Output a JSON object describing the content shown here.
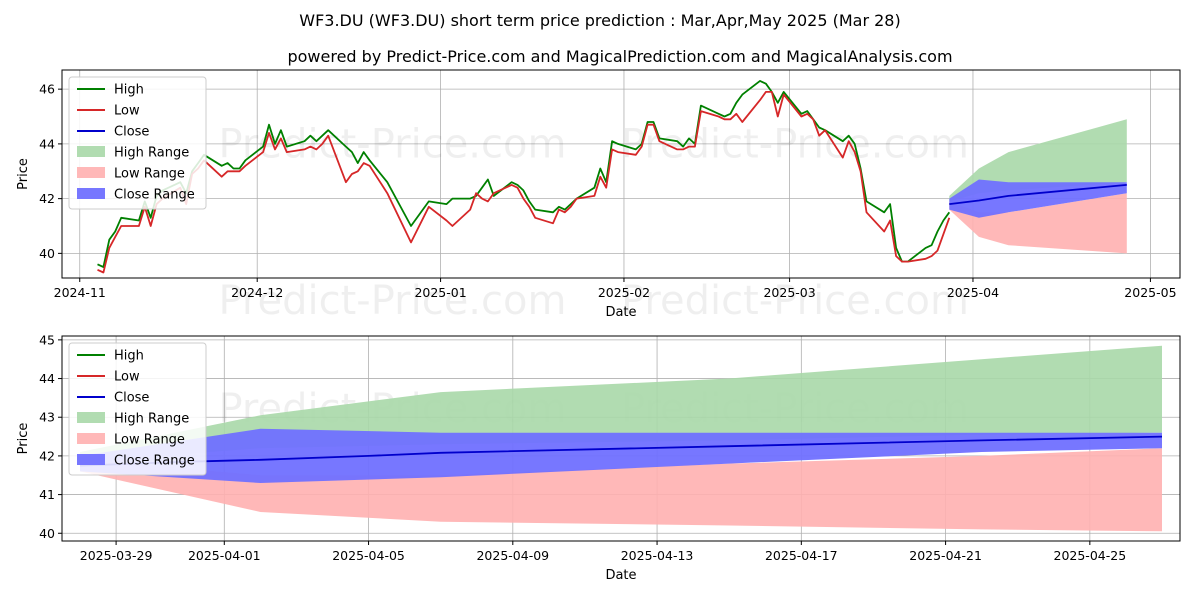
{
  "title": "WF3.DU (WF3.DU) short term price prediction : Mar,Apr,May 2025 (Mar 28)",
  "subtitle": "powered by Predict-Price.com and MagicalPrediction.com and MagicalAnalysis.com",
  "watermark": "Predict-Price.com",
  "colors": {
    "high": "#008000",
    "low": "#d62728",
    "close": "#0000cc",
    "high_range": "#a8d8a8",
    "low_range": "#ffb0b0",
    "close_range": "#7070ff",
    "grid": "#b0b0b0"
  },
  "chart_data": [
    {
      "type": "line",
      "xlabel": "Date",
      "ylabel": "Price",
      "x_range": [
        "2024-10-29",
        "2025-05-06"
      ],
      "ylim": [
        39.1,
        46.7
      ],
      "grid": true,
      "legend_position": "top-left",
      "x_ticks": [
        "2024-11-01",
        "2024-12-01",
        "2025-01-01",
        "2025-02-01",
        "2025-03-01",
        "2025-04-01",
        "2025-05-01"
      ],
      "x_tick_labels": [
        "2024-11",
        "2024-12",
        "2025-01",
        "2025-02",
        "2025-03",
        "2025-04",
        "2025-05"
      ],
      "y_ticks": [
        40,
        42,
        44,
        46
      ],
      "series": [
        {
          "name": "High",
          "x": [
            "2024-11-04",
            "2024-11-05",
            "2024-11-06",
            "2024-11-07",
            "2024-11-08",
            "2024-11-11",
            "2024-11-12",
            "2024-11-13",
            "2024-11-14",
            "2024-11-15",
            "2024-11-18",
            "2024-11-19",
            "2024-11-20",
            "2024-11-21",
            "2024-11-22",
            "2024-11-25",
            "2024-11-26",
            "2024-11-27",
            "2024-11-28",
            "2024-11-29",
            "2024-12-02",
            "2024-12-03",
            "2024-12-04",
            "2024-12-05",
            "2024-12-06",
            "2024-12-09",
            "2024-12-10",
            "2024-12-11",
            "2024-12-12",
            "2024-12-13",
            "2024-12-16",
            "2024-12-17",
            "2024-12-18",
            "2024-12-19",
            "2024-12-20",
            "2024-12-23",
            "2024-12-27",
            "2024-12-30",
            "2025-01-02",
            "2025-01-03",
            "2025-01-06",
            "2025-01-07",
            "2025-01-08",
            "2025-01-09",
            "2025-01-10",
            "2025-01-13",
            "2025-01-14",
            "2025-01-15",
            "2025-01-16",
            "2025-01-17",
            "2025-01-20",
            "2025-01-21",
            "2025-01-22",
            "2025-01-23",
            "2025-01-24",
            "2025-01-27",
            "2025-01-28",
            "2025-01-29",
            "2025-01-30",
            "2025-01-31",
            "2025-02-03",
            "2025-02-04",
            "2025-02-05",
            "2025-02-06",
            "2025-02-07",
            "2025-02-10",
            "2025-02-11",
            "2025-02-12",
            "2025-02-13",
            "2025-02-14",
            "2025-02-17",
            "2025-02-18",
            "2025-02-19",
            "2025-02-20",
            "2025-02-21",
            "2025-02-24",
            "2025-02-25",
            "2025-02-26",
            "2025-02-27",
            "2025-02-28",
            "2025-03-03",
            "2025-03-04",
            "2025-03-05",
            "2025-03-06",
            "2025-03-07",
            "2025-03-10",
            "2025-03-11",
            "2025-03-12",
            "2025-03-13",
            "2025-03-14",
            "2025-03-17",
            "2025-03-18",
            "2025-03-19",
            "2025-03-20",
            "2025-03-21",
            "2025-03-24",
            "2025-03-25",
            "2025-03-26",
            "2025-03-27",
            "2025-03-28"
          ],
          "values": [
            39.6,
            39.5,
            40.5,
            40.8,
            41.3,
            41.2,
            41.9,
            41.3,
            42.1,
            42.3,
            42.6,
            42.2,
            43.0,
            43.3,
            43.6,
            43.2,
            43.3,
            43.1,
            43.1,
            43.4,
            43.9,
            44.7,
            44.0,
            44.5,
            43.9,
            44.1,
            44.3,
            44.1,
            44.3,
            44.5,
            43.9,
            43.7,
            43.3,
            43.7,
            43.4,
            42.6,
            41.0,
            41.9,
            41.8,
            42.0,
            42.0,
            42.1,
            42.4,
            42.7,
            42.1,
            42.6,
            42.5,
            42.3,
            41.9,
            41.6,
            41.5,
            41.7,
            41.6,
            41.8,
            42.0,
            42.4,
            43.1,
            42.6,
            44.1,
            44.0,
            43.8,
            44.0,
            44.8,
            44.8,
            44.2,
            44.1,
            43.9,
            44.2,
            44.0,
            45.4,
            45.1,
            45.0,
            45.1,
            45.5,
            45.8,
            46.3,
            46.2,
            45.9,
            45.5,
            45.9,
            45.1,
            45.2,
            44.9,
            44.6,
            44.5,
            44.1,
            44.3,
            44.0,
            43.1,
            41.9,
            41.5,
            41.8,
            40.2,
            39.7,
            39.7,
            40.2,
            40.3,
            40.8,
            41.2,
            41.5
          ]
        },
        {
          "name": "Low",
          "x": [
            "2024-11-04",
            "2024-11-05",
            "2024-11-06",
            "2024-11-07",
            "2024-11-08",
            "2024-11-11",
            "2024-11-12",
            "2024-11-13",
            "2024-11-14",
            "2024-11-15",
            "2024-11-18",
            "2024-11-19",
            "2024-11-20",
            "2024-11-21",
            "2024-11-22",
            "2024-11-25",
            "2024-11-26",
            "2024-11-27",
            "2024-11-28",
            "2024-11-29",
            "2024-12-02",
            "2024-12-03",
            "2024-12-04",
            "2024-12-05",
            "2024-12-06",
            "2024-12-09",
            "2024-12-10",
            "2024-12-11",
            "2024-12-12",
            "2024-12-13",
            "2024-12-16",
            "2024-12-17",
            "2024-12-18",
            "2024-12-19",
            "2024-12-20",
            "2024-12-23",
            "2024-12-27",
            "2024-12-30",
            "2025-01-02",
            "2025-01-03",
            "2025-01-06",
            "2025-01-07",
            "2025-01-08",
            "2025-01-09",
            "2025-01-10",
            "2025-01-13",
            "2025-01-14",
            "2025-01-15",
            "2025-01-16",
            "2025-01-17",
            "2025-01-20",
            "2025-01-21",
            "2025-01-22",
            "2025-01-23",
            "2025-01-24",
            "2025-01-27",
            "2025-01-28",
            "2025-01-29",
            "2025-01-30",
            "2025-01-31",
            "2025-02-03",
            "2025-02-04",
            "2025-02-05",
            "2025-02-06",
            "2025-02-07",
            "2025-02-10",
            "2025-02-11",
            "2025-02-12",
            "2025-02-13",
            "2025-02-14",
            "2025-02-17",
            "2025-02-18",
            "2025-02-19",
            "2025-02-20",
            "2025-02-21",
            "2025-02-24",
            "2025-02-25",
            "2025-02-26",
            "2025-02-27",
            "2025-02-28",
            "2025-03-03",
            "2025-03-04",
            "2025-03-05",
            "2025-03-06",
            "2025-03-07",
            "2025-03-10",
            "2025-03-11",
            "2025-03-12",
            "2025-03-13",
            "2025-03-14",
            "2025-03-17",
            "2025-03-18",
            "2025-03-19",
            "2025-03-20",
            "2025-03-21",
            "2025-03-24",
            "2025-03-25",
            "2025-03-26",
            "2025-03-27",
            "2025-03-28"
          ],
          "values": [
            39.4,
            39.3,
            40.2,
            40.6,
            41.0,
            41.0,
            41.7,
            41.0,
            41.8,
            42.0,
            42.4,
            41.8,
            42.9,
            43.1,
            43.4,
            42.8,
            43.0,
            43.0,
            43.0,
            43.2,
            43.7,
            44.4,
            43.8,
            44.2,
            43.7,
            43.8,
            43.9,
            43.8,
            44.0,
            44.3,
            42.6,
            42.9,
            43.0,
            43.3,
            43.2,
            42.2,
            40.4,
            41.7,
            41.2,
            41.0,
            41.6,
            42.2,
            42.0,
            41.9,
            42.2,
            42.5,
            42.4,
            42.0,
            41.7,
            41.3,
            41.1,
            41.6,
            41.5,
            41.7,
            42.0,
            42.1,
            42.8,
            42.4,
            43.8,
            43.7,
            43.6,
            43.9,
            44.7,
            44.7,
            44.1,
            43.8,
            43.8,
            43.9,
            43.9,
            45.2,
            45.0,
            44.9,
            44.9,
            45.1,
            44.8,
            45.6,
            45.9,
            45.9,
            45.0,
            45.8,
            45.0,
            45.1,
            44.9,
            44.3,
            44.5,
            43.5,
            44.1,
            43.7,
            43.0,
            41.5,
            40.8,
            41.2,
            39.9,
            39.7,
            39.7,
            39.8,
            39.9,
            40.1,
            40.7,
            41.3
          ]
        },
        {
          "name": "Close",
          "x": [
            "2025-03-28",
            "2025-04-02",
            "2025-04-07",
            "2025-04-27"
          ],
          "values": [
            41.8,
            41.93,
            42.1,
            42.5
          ]
        }
      ],
      "bands": [
        {
          "name": "High Range",
          "x": [
            "2025-03-28",
            "2025-04-02",
            "2025-04-07",
            "2025-04-27"
          ],
          "upper": [
            42.1,
            43.1,
            43.7,
            44.9
          ],
          "lower": [
            41.9,
            42.2,
            42.3,
            42.6
          ]
        },
        {
          "name": "Low Range",
          "x": [
            "2025-03-28",
            "2025-04-02",
            "2025-04-07",
            "2025-04-27"
          ],
          "upper": [
            41.9,
            41.5,
            41.5,
            42.2
          ],
          "lower": [
            41.6,
            40.6,
            40.3,
            40.0
          ]
        },
        {
          "name": "Close Range",
          "x": [
            "2025-03-28",
            "2025-04-02",
            "2025-04-07",
            "2025-04-27"
          ],
          "upper": [
            42.0,
            42.7,
            42.6,
            42.6
          ],
          "lower": [
            41.6,
            41.3,
            41.5,
            42.2
          ]
        }
      ]
    },
    {
      "type": "line",
      "xlabel": "Date",
      "ylabel": "Price",
      "x_range": [
        "2025-03-27 12:00",
        "2025-04-27 12:00"
      ],
      "ylim": [
        39.8,
        45.1
      ],
      "grid": true,
      "legend_position": "top-left",
      "x_ticks": [
        "2025-03-29",
        "2025-04-01",
        "2025-04-05",
        "2025-04-09",
        "2025-04-13",
        "2025-04-17",
        "2025-04-21",
        "2025-04-25"
      ],
      "x_tick_labels": [
        "2025-03-29",
        "2025-04-01",
        "2025-04-05",
        "2025-04-09",
        "2025-04-13",
        "2025-04-17",
        "2025-04-21",
        "2025-04-25"
      ],
      "y_ticks": [
        40,
        41,
        42,
        43,
        44,
        45
      ],
      "series": [
        {
          "name": "Close",
          "x": [
            "2025-03-28",
            "2025-03-31",
            "2025-04-02",
            "2025-04-05",
            "2025-04-07",
            "2025-04-15",
            "2025-04-22",
            "2025-04-27"
          ],
          "values": [
            41.75,
            41.85,
            41.9,
            42.0,
            42.08,
            42.25,
            42.4,
            42.5
          ]
        }
      ],
      "bands": [
        {
          "name": "High Range",
          "x": [
            "2025-03-28",
            "2025-04-02",
            "2025-04-07",
            "2025-04-15",
            "2025-04-22",
            "2025-04-27"
          ],
          "upper": [
            42.1,
            43.05,
            43.65,
            44.0,
            44.5,
            44.85
          ],
          "lower": [
            41.85,
            42.2,
            42.3,
            42.4,
            42.55,
            42.6
          ]
        },
        {
          "name": "Low Range",
          "x": [
            "2025-03-28",
            "2025-04-02",
            "2025-04-07",
            "2025-04-15",
            "2025-04-22",
            "2025-04-27"
          ],
          "upper": [
            41.9,
            41.5,
            41.5,
            41.8,
            42.0,
            42.2
          ],
          "lower": [
            41.6,
            40.55,
            40.3,
            40.2,
            40.1,
            40.05
          ]
        },
        {
          "name": "Close Range",
          "x": [
            "2025-03-28",
            "2025-04-02",
            "2025-04-07",
            "2025-04-15",
            "2025-04-22",
            "2025-04-27"
          ],
          "upper": [
            42.0,
            42.7,
            42.6,
            42.6,
            42.6,
            42.6
          ],
          "lower": [
            41.6,
            41.3,
            41.45,
            41.8,
            42.1,
            42.2
          ]
        }
      ]
    }
  ]
}
